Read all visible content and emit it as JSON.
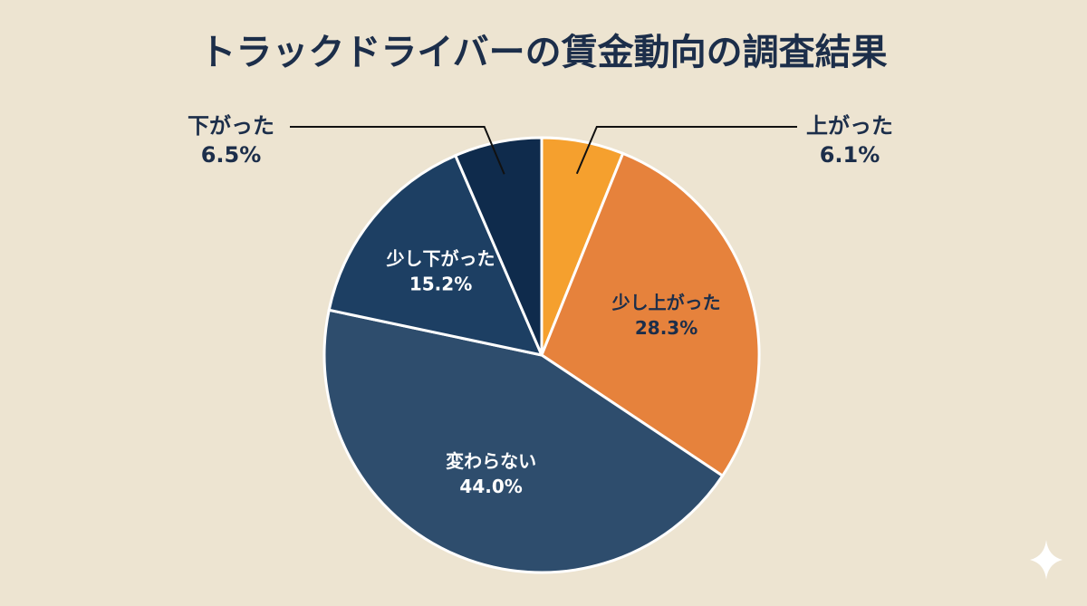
{
  "chart_data": {
    "type": "pie",
    "title": "トラックドライバーの賃金動向の調査結果",
    "categories": [
      "上がった",
      "少し上がった",
      "変わらない",
      "少し下がった",
      "下がった"
    ],
    "values": [
      6.1,
      28.3,
      44.0,
      15.2,
      6.5
    ],
    "value_labels": [
      "6.1%",
      "28.3%",
      "44.0%",
      "15.2%",
      "6.5%"
    ],
    "colors": [
      "#f5a02e",
      "#e6823c",
      "#2e4d6d",
      "#1d3f63",
      "#0f2b4c"
    ]
  }
}
